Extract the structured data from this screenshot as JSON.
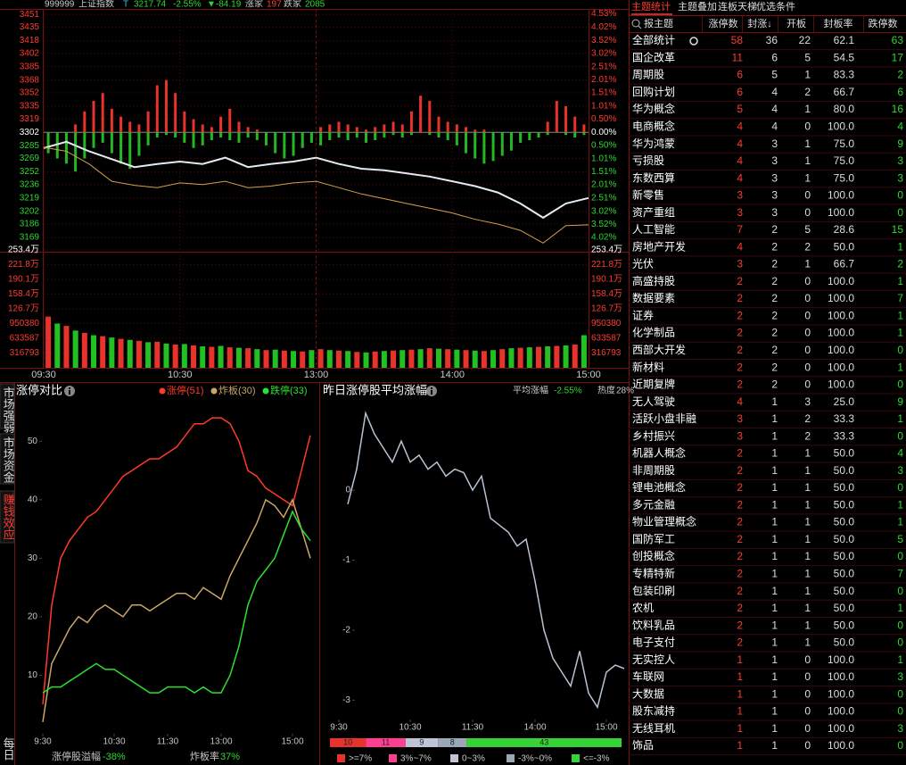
{
  "header": {
    "code": "999999",
    "name": "上证指数",
    "flag": "T",
    "price": "3217.74",
    "pct": "-2.55%",
    "change": "▼-84.19",
    "up_label": "涨家",
    "up": "197",
    "down_label": "跌家",
    "down": "2085"
  },
  "chart_data": [
    {
      "type": "line",
      "x": [
        0,
        10,
        20,
        30,
        40,
        50,
        60,
        70,
        80,
        90,
        100,
        110,
        120,
        130,
        140,
        150,
        160,
        170,
        180,
        190,
        200,
        210,
        220,
        230,
        240
      ],
      "xlim": [
        0,
        240
      ],
      "xticks": [
        {
          "value": 0,
          "label": "09:30"
        },
        {
          "value": 60,
          "label": "10:30"
        },
        {
          "value": 120,
          "label": "13:00"
        },
        {
          "value": 180,
          "label": "14:00"
        },
        {
          "value": 240,
          "label": "15:00"
        }
      ],
      "ylim": [
        3151,
        3458
      ],
      "yticks": [
        3451,
        3435,
        3418,
        3402,
        3385,
        3368,
        3352,
        3335,
        3319,
        3302,
        3285,
        3269,
        3252,
        3236,
        3219,
        3202,
        3186,
        3169
      ],
      "y2lim": [
        -4.57,
        4.72
      ],
      "y2ticks": [
        {
          "value": 4.53,
          "label": "4.53%"
        },
        {
          "value": 4.02,
          "label": "4.02%"
        },
        {
          "value": 3.52,
          "label": "3.52%"
        },
        {
          "value": 3.02,
          "label": "3.02%"
        },
        {
          "value": 2.51,
          "label": "2.51%"
        },
        {
          "value": 2.01,
          "label": "2.01%"
        },
        {
          "value": 1.51,
          "label": "1.51%"
        },
        {
          "value": 1.01,
          "label": "1.01%"
        },
        {
          "value": 0.5,
          "label": "0.50%"
        },
        {
          "value": 0,
          "label": "0.00%"
        },
        {
          "value": -0.5,
          "label": "0.50%"
        },
        {
          "value": -1.01,
          "label": "1.01%"
        },
        {
          "value": -1.51,
          "label": "1.51%"
        },
        {
          "value": -2.01,
          "label": "2.01%"
        },
        {
          "value": -2.51,
          "label": "2.51%"
        },
        {
          "value": -3.02,
          "label": "3.02%"
        },
        {
          "value": -3.52,
          "label": "3.52%"
        },
        {
          "value": -4.02,
          "label": "4.02%"
        }
      ],
      "grid": true,
      "series": [
        {
          "color": "#e6e9f2",
          "values": [
            3282,
            3290,
            3278,
            3268,
            3258,
            3262,
            3265,
            3262,
            3270,
            3258,
            3262,
            3265,
            3270,
            3262,
            3256,
            3254,
            3250,
            3246,
            3240,
            3234,
            3226,
            3212,
            3194,
            3212,
            3219
          ]
        },
        {
          "color": "#d4a04a",
          "values": [
            3283,
            3278,
            3262,
            3240,
            3235,
            3232,
            3238,
            3236,
            3240,
            3232,
            3234,
            3238,
            3240,
            3232,
            3224,
            3218,
            3212,
            3206,
            3200,
            3192,
            3186,
            3178,
            3162,
            3184,
            3185
          ]
        }
      ],
      "breadth": [
        {
          "color": "#e8322c",
          "values": [
            0,
            0,
            0,
            0.3,
            0.8,
            1.2,
            1.5,
            0.9,
            0.6,
            0.4,
            0.3,
            0.8,
            1.8,
            2.0,
            1.5,
            0.8,
            0.5,
            0.3,
            0.2,
            0.6,
            0.9,
            0.4,
            0.2,
            0.1,
            0,
            0,
            0,
            0,
            0,
            0,
            0.2,
            0.3,
            0.4,
            0.3,
            0.2,
            0.1,
            0.2,
            0.3,
            0.4,
            0.3,
            0.8,
            1.4,
            1.2,
            0.6,
            0.4,
            0.3,
            0.2,
            0.1,
            0.1,
            0,
            0,
            0,
            0,
            0,
            0,
            0.4,
            1.2,
            1.0,
            0.6,
            0.3
          ]
        },
        {
          "color": "#22b822",
          "values": [
            -0.8,
            -1.0,
            -1.2,
            -1.5,
            -1.0,
            -0.6,
            -0.4,
            -0.8,
            -1.2,
            -1.4,
            -0.9,
            -0.5,
            -0.2,
            -0.1,
            -0.2,
            -0.4,
            -0.6,
            -0.5,
            -0.3,
            -0.2,
            -0.3,
            -0.4,
            -0.2,
            -0.3,
            -0.5,
            -0.8,
            -1.0,
            -0.9,
            -0.6,
            -0.4,
            -0.5,
            -0.3,
            -0.2,
            -0.3,
            -0.2,
            -0.4,
            -0.3,
            -0.2,
            -0.1,
            -0.2,
            -0.1,
            0,
            -0.1,
            -0.2,
            -0.3,
            -0.5,
            -0.8,
            -1.0,
            -1.2,
            -1.1,
            -0.9,
            -0.7,
            -0.4,
            -0.3,
            -0.2,
            -0.1,
            0,
            -0.1,
            -0.2,
            -0.1
          ]
        }
      ],
      "volume": {
        "ylim": [
          0,
          2534000
        ],
        "yticks": [
          {
            "value": 2534000,
            "label": "253.4万"
          },
          {
            "value": 2218000,
            "label": "221.8万"
          },
          {
            "value": 1901000,
            "label": "190.1万"
          },
          {
            "value": 1584000,
            "label": "158.4万"
          },
          {
            "value": 1267000,
            "label": "126.7万"
          },
          950380,
          633587,
          316793
        ],
        "colors": [
          "#e8322c",
          "#22c022"
        ],
        "values": [
          1100000,
          950000,
          900000,
          800000,
          750000,
          700000,
          680000,
          650000,
          620000,
          600000,
          580000,
          550000,
          560000,
          520000,
          500000,
          510000,
          480000,
          460000,
          450000,
          470000,
          440000,
          430000,
          420000,
          400000,
          380000,
          390000,
          370000,
          360000,
          350000,
          380000,
          400000,
          380000,
          370000,
          360000,
          340000,
          330000,
          350000,
          360000,
          370000,
          380000,
          390000,
          400000,
          420000,
          410000,
          400000,
          390000,
          380000,
          370000,
          360000,
          380000,
          400000,
          420000,
          430000,
          440000,
          450000,
          460000,
          470000,
          480000,
          500000,
          700000
        ]
      }
    },
    {
      "type": "line",
      "title": "涨停对比",
      "xlim": [
        0,
        30
      ],
      "xticks": [
        {
          "value": 0,
          "label": "9:30"
        },
        {
          "value": 8,
          "label": "10:30"
        },
        {
          "value": 14,
          "label": "11:30"
        },
        {
          "value": 20,
          "label": "13:00"
        },
        {
          "value": 28,
          "label": "15:00"
        }
      ],
      "ylim": [
        0,
        56
      ],
      "yticks": [
        10,
        20,
        30,
        40,
        50
      ],
      "series": [
        {
          "name": "涨停(51)",
          "color": "#ff3a2a",
          "values": [
            5,
            22,
            30,
            33,
            35,
            37,
            38,
            40,
            42,
            44,
            45,
            46,
            47,
            47,
            48,
            49,
            51,
            53,
            53,
            54,
            54,
            53,
            50,
            45,
            44,
            42,
            41,
            40,
            39,
            45,
            51
          ]
        },
        {
          "name": "炸板(30)",
          "color": "#c9a667",
          "values": [
            2,
            12,
            15,
            18,
            20,
            19,
            21,
            22,
            21,
            20,
            22,
            22,
            21,
            22,
            23,
            24,
            24,
            23,
            25,
            24,
            23,
            27,
            30,
            33,
            36,
            40,
            39,
            37,
            40,
            35,
            30
          ]
        },
        {
          "name": "跌停(33)",
          "color": "#2ee02e",
          "values": [
            7,
            8,
            8,
            9,
            10,
            11,
            12,
            11,
            11,
            10,
            9,
            8,
            7,
            7,
            8,
            8,
            8,
            7,
            8,
            7,
            7,
            10,
            15,
            22,
            26,
            28,
            30,
            34,
            38,
            35,
            33
          ]
        }
      ],
      "footer": [
        {
          "label": "涨停股溢幅",
          "value": "-38%"
        },
        {
          "label": "炸板率",
          "value": "37%"
        }
      ]
    },
    {
      "type": "line",
      "title": "昨日涨停股平均涨幅",
      "stats": [
        {
          "label": "平均涨幅",
          "value": "-2.55%"
        },
        {
          "label": "热度",
          "value": "28%"
        }
      ],
      "xlim": [
        0,
        32
      ],
      "xticks": [
        {
          "value": 0,
          "label": "9:30"
        },
        {
          "value": 8,
          "label": "10:30"
        },
        {
          "value": 15,
          "label": "11:30"
        },
        {
          "value": 22,
          "label": "14:00"
        },
        {
          "value": 30,
          "label": "15:00"
        }
      ],
      "ylim": [
        -3.2,
        1.2
      ],
      "yticks": [
        0,
        -1,
        -2,
        -3
      ],
      "series": [
        {
          "color": "#b8c4d4",
          "values": [
            null,
            -0.2,
            0.3,
            1.1,
            0.8,
            0.6,
            0.4,
            0.7,
            0.4,
            0.5,
            0.3,
            0.4,
            0.2,
            0.3,
            0.25,
            0.0,
            0.2,
            -0.4,
            -0.5,
            -0.6,
            -0.8,
            -0.7,
            -1.3,
            -2.0,
            -2.4,
            -2.6,
            -2.8,
            -2.3,
            -2.9,
            -3.1,
            -2.6,
            -2.5,
            -2.55
          ]
        }
      ],
      "distribution": {
        "counts": [
          10,
          11,
          9,
          8,
          43
        ],
        "colors": [
          "#e8322c",
          "#ff4090",
          "#c0c4d8",
          "#9aa8b8",
          "#35d335"
        ],
        "labels": [
          ">=7%",
          "3%~7%",
          "0~3%",
          "-3%~0%",
          "<=-3%"
        ]
      }
    }
  ],
  "sidebar": {
    "tabs": [
      "市场强弱",
      "市场资金",
      "赚钱效应"
    ],
    "bottom": "每日"
  },
  "table": {
    "tabs": [
      "主题统计",
      "主题叠加",
      "连板天梯",
      "优选条件"
    ],
    "columns": [
      "报主题",
      "涨停数",
      "封涨↓",
      "开板",
      "封板率",
      "跌停数"
    ],
    "rows": [
      [
        "全部统计",
        "58",
        "36",
        "22",
        "62.1",
        "63"
      ],
      [
        "国企改革",
        "11",
        "6",
        "5",
        "54.5",
        "17"
      ],
      [
        "周期股",
        "6",
        "5",
        "1",
        "83.3",
        "2"
      ],
      [
        "回购计划",
        "6",
        "4",
        "2",
        "66.7",
        "6"
      ],
      [
        "华为概念",
        "5",
        "4",
        "1",
        "80.0",
        "16"
      ],
      [
        "电商概念",
        "4",
        "4",
        "0",
        "100.0",
        "4"
      ],
      [
        "华为鸿蒙",
        "4",
        "3",
        "1",
        "75.0",
        "9"
      ],
      [
        "亏损股",
        "4",
        "3",
        "1",
        "75.0",
        "3"
      ],
      [
        "东数西算",
        "4",
        "3",
        "1",
        "75.0",
        "3"
      ],
      [
        "新零售",
        "3",
        "3",
        "0",
        "100.0",
        "0"
      ],
      [
        "资产重组",
        "3",
        "3",
        "0",
        "100.0",
        "0"
      ],
      [
        "人工智能",
        "7",
        "2",
        "5",
        "28.6",
        "15"
      ],
      [
        "房地产开发",
        "4",
        "2",
        "2",
        "50.0",
        "1"
      ],
      [
        "光伏",
        "3",
        "2",
        "1",
        "66.7",
        "2"
      ],
      [
        "高盛持股",
        "2",
        "2",
        "0",
        "100.0",
        "1"
      ],
      [
        "数据要素",
        "2",
        "2",
        "0",
        "100.0",
        "7"
      ],
      [
        "证券",
        "2",
        "2",
        "0",
        "100.0",
        "1"
      ],
      [
        "化学制品",
        "2",
        "2",
        "0",
        "100.0",
        "1"
      ],
      [
        "西部大开发",
        "2",
        "2",
        "0",
        "100.0",
        "0"
      ],
      [
        "新材料",
        "2",
        "2",
        "0",
        "100.0",
        "1"
      ],
      [
        "近期复牌",
        "2",
        "2",
        "0",
        "100.0",
        "0"
      ],
      [
        "无人驾驶",
        "4",
        "1",
        "3",
        "25.0",
        "9"
      ],
      [
        "活跃小盘非融",
        "3",
        "1",
        "2",
        "33.3",
        "1"
      ],
      [
        "乡村振兴",
        "3",
        "1",
        "2",
        "33.3",
        "0"
      ],
      [
        "机器人概念",
        "2",
        "1",
        "1",
        "50.0",
        "4"
      ],
      [
        "非周期股",
        "2",
        "1",
        "1",
        "50.0",
        "3"
      ],
      [
        "锂电池概念",
        "2",
        "1",
        "1",
        "50.0",
        "0"
      ],
      [
        "多元金融",
        "2",
        "1",
        "1",
        "50.0",
        "1"
      ],
      [
        "物业管理概念",
        "2",
        "1",
        "1",
        "50.0",
        "1"
      ],
      [
        "国防军工",
        "2",
        "1",
        "1",
        "50.0",
        "5"
      ],
      [
        "创投概念",
        "2",
        "1",
        "1",
        "50.0",
        "0"
      ],
      [
        "专精特新",
        "2",
        "1",
        "1",
        "50.0",
        "7"
      ],
      [
        "包装印刷",
        "2",
        "1",
        "1",
        "50.0",
        "0"
      ],
      [
        "农机",
        "2",
        "1",
        "1",
        "50.0",
        "1"
      ],
      [
        "饮料乳品",
        "2",
        "1",
        "1",
        "50.0",
        "0"
      ],
      [
        "电子支付",
        "2",
        "1",
        "1",
        "50.0",
        "0"
      ],
      [
        "无实控人",
        "1",
        "1",
        "0",
        "100.0",
        "1"
      ],
      [
        "车联网",
        "1",
        "1",
        "0",
        "100.0",
        "3"
      ],
      [
        "大数据",
        "1",
        "1",
        "0",
        "100.0",
        "0"
      ],
      [
        "股东减持",
        "1",
        "1",
        "0",
        "100.0",
        "0"
      ],
      [
        "无线耳机",
        "1",
        "1",
        "0",
        "100.0",
        "3"
      ],
      [
        "饰品",
        "1",
        "1",
        "0",
        "100.0",
        "0"
      ]
    ]
  }
}
